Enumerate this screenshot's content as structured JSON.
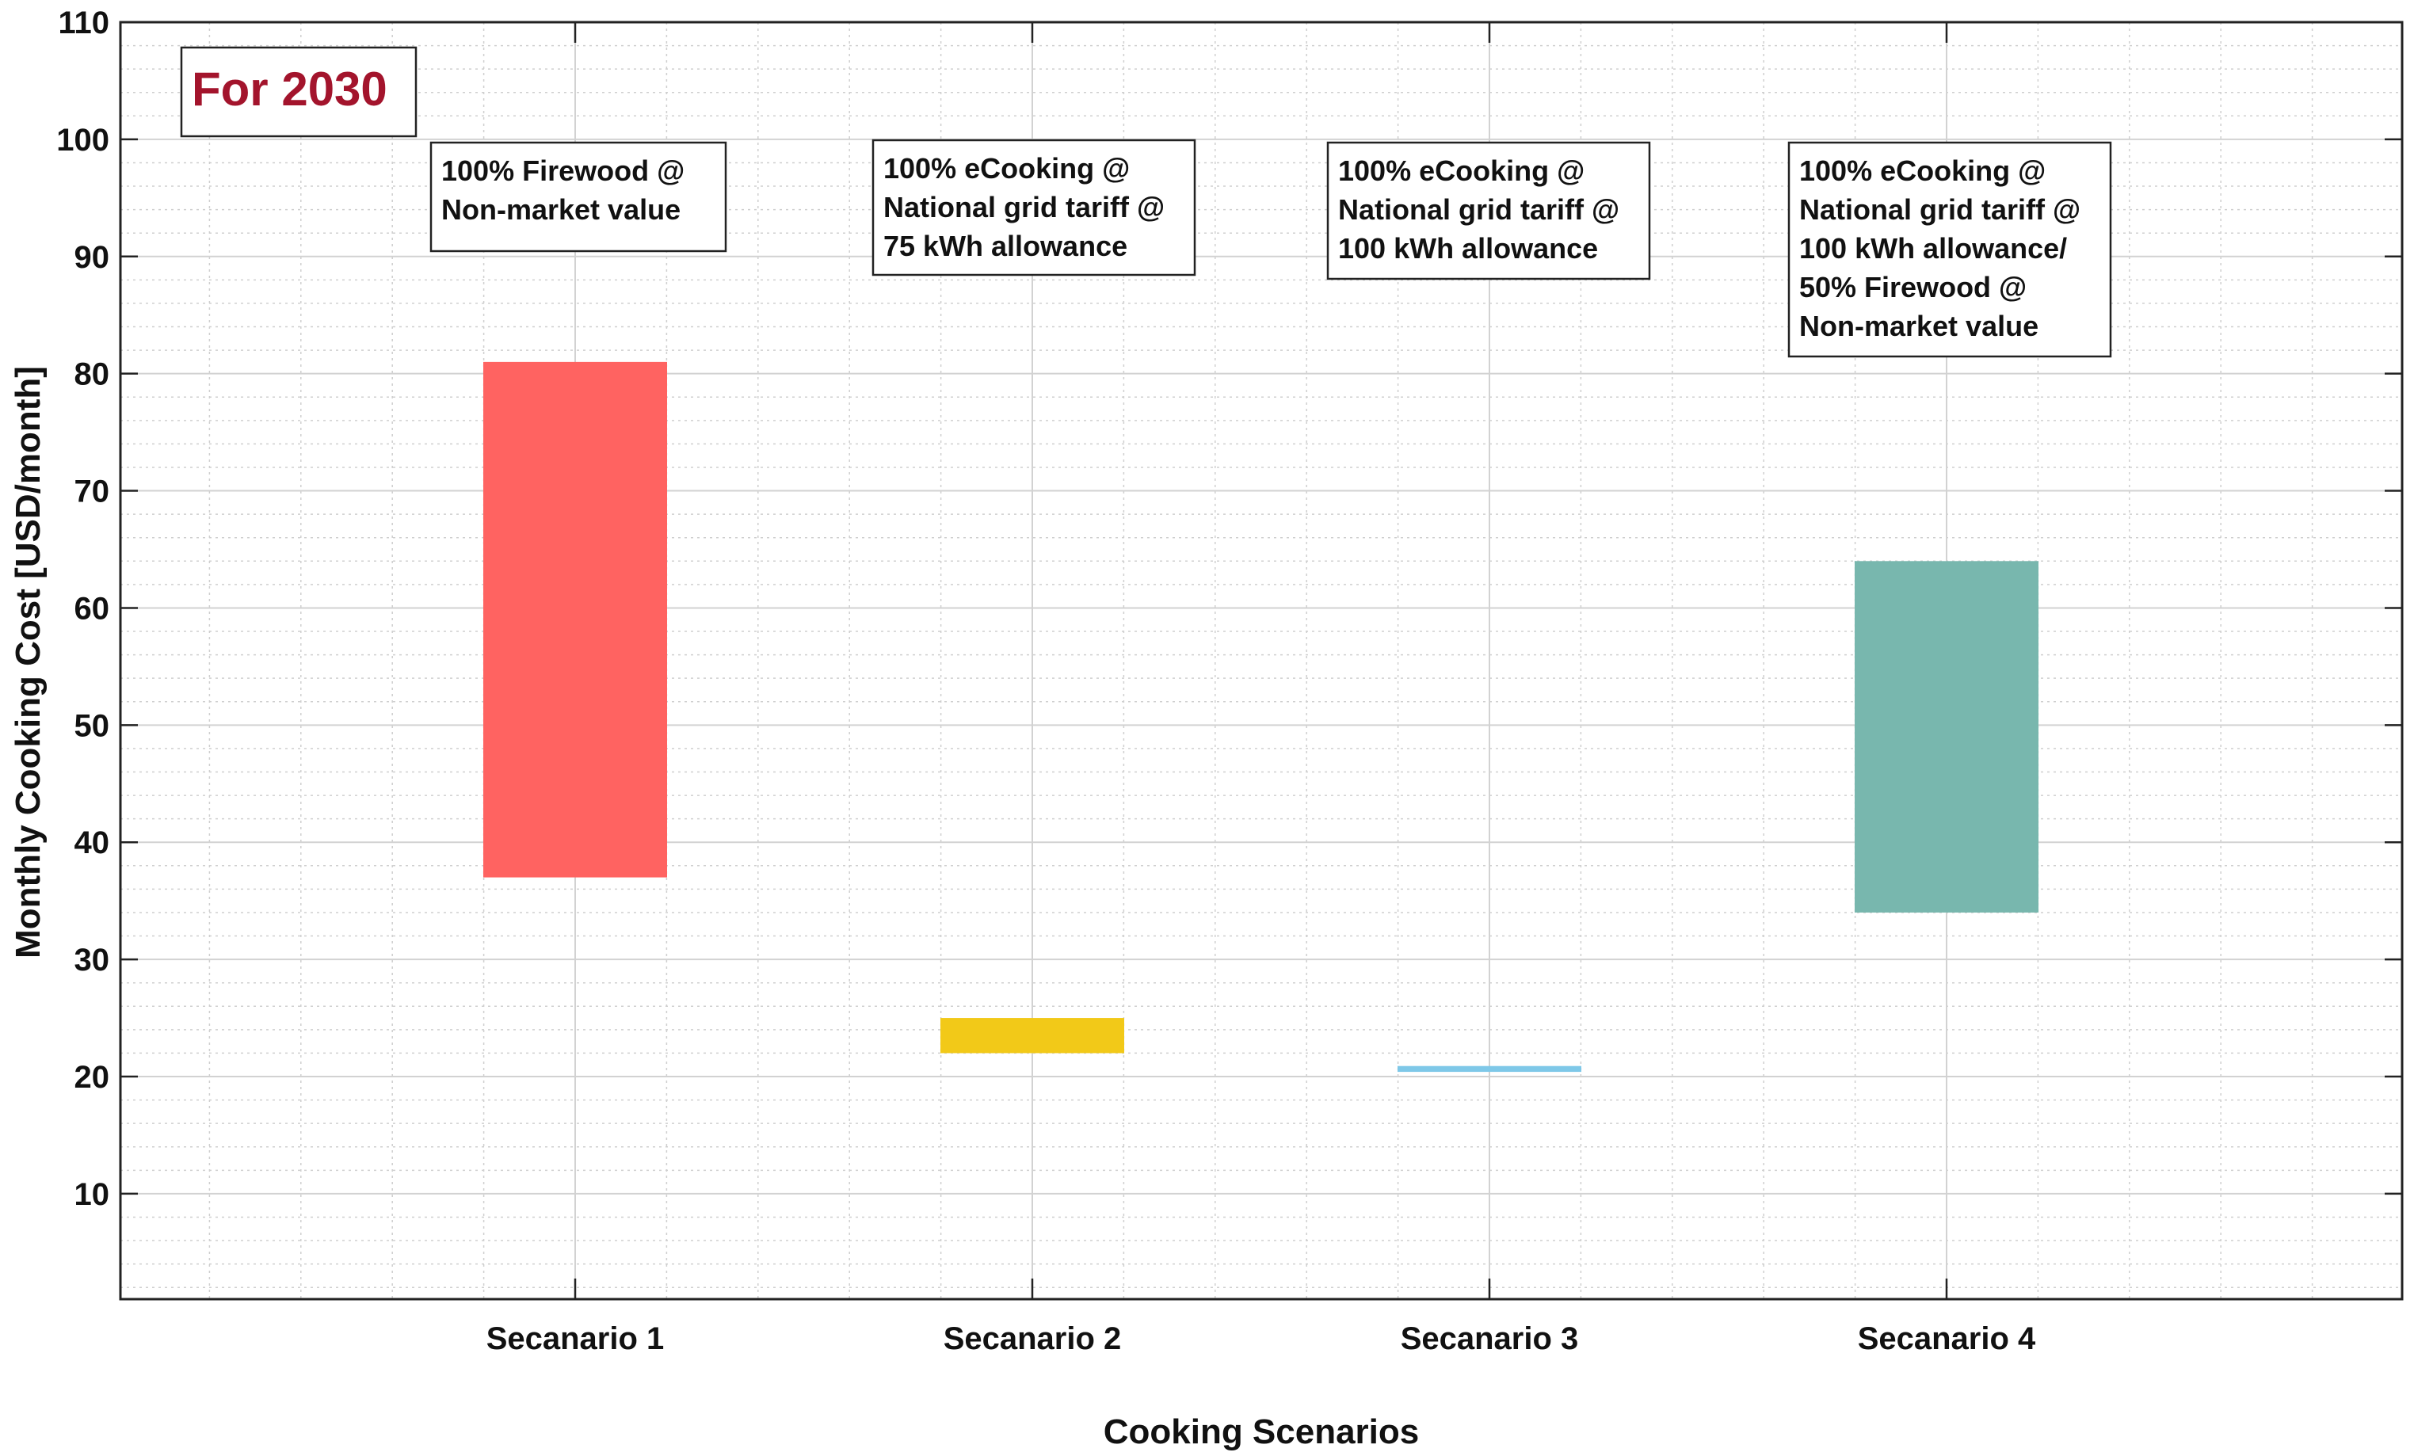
{
  "chart_data": {
    "type": "floating-bar",
    "title": "",
    "xlabel": "Cooking Scenarios",
    "ylabel": "Monthly Cooking Cost [USD/month]",
    "ylim": [
      1,
      110
    ],
    "yticks": [
      10,
      20,
      30,
      40,
      50,
      60,
      70,
      80,
      90,
      100,
      110
    ],
    "grid": true,
    "categories": [
      "Secanario 1",
      "Secanario 2",
      "Secanario 3",
      "Secanario 4"
    ],
    "series": [
      {
        "name": "Secanario 1",
        "low": 37,
        "high": 81,
        "color": "#ff6361"
      },
      {
        "name": "Secanario 2",
        "low": 22,
        "high": 25,
        "color": "#f2c918"
      },
      {
        "name": "Secanario 3",
        "low": 20.4,
        "high": 20.9,
        "color": "#7ec8e8"
      },
      {
        "name": "Secanario 4",
        "low": 34,
        "high": 64,
        "color": "#78b7ae"
      }
    ],
    "year_label": "For 2030",
    "year_color": "#a3142c",
    "annotations": [
      {
        "lines": [
          "100% Firewood @",
          "Non-market value"
        ]
      },
      {
        "lines": [
          "100% eCooking @",
          "National grid tariff @",
          "75 kWh allowance"
        ]
      },
      {
        "lines": [
          "100% eCooking @",
          "National grid tariff @",
          "100 kWh allowance"
        ]
      },
      {
        "lines": [
          "100% eCooking @",
          "National grid tariff @",
          "100 kWh allowance/",
          "50% Firewood @",
          "Non-market value"
        ]
      }
    ]
  }
}
